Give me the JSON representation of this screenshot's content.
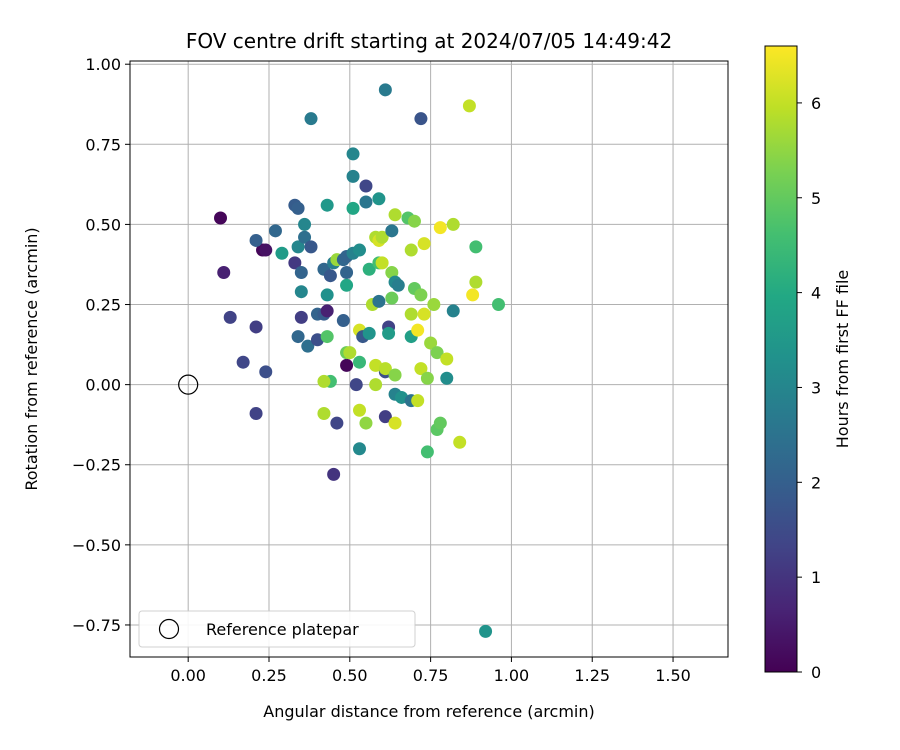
{
  "chart_data": {
    "type": "scatter",
    "title": "FOV centre drift starting at 2024/07/05 14:49:42",
    "xlabel": "Angular distance from reference (arcmin)",
    "ylabel": "Rotation from reference (arcmin)",
    "xlim": [
      -0.18,
      1.67
    ],
    "ylim": [
      -0.85,
      1.01
    ],
    "xticks": [
      0.0,
      0.25,
      0.5,
      0.75,
      1.0,
      1.25,
      1.5
    ],
    "xtick_labels": [
      "0.00",
      "0.25",
      "0.50",
      "0.75",
      "1.00",
      "1.25",
      "1.50"
    ],
    "yticks": [
      -0.75,
      -0.5,
      -0.25,
      0.0,
      0.25,
      0.5,
      0.75,
      1.0
    ],
    "ytick_labels": [
      "−0.75",
      "−0.50",
      "−0.25",
      "0.00",
      "0.25",
      "0.50",
      "0.75",
      "1.00"
    ],
    "grid": true,
    "legend": {
      "placement": "lower-left",
      "entries": [
        {
          "label": "Reference platepar",
          "marker": "open-circle"
        }
      ]
    },
    "reference_point": {
      "x": 0.0,
      "y": 0.0
    },
    "colorbar": {
      "label": "Hours from first FF file",
      "range": [
        0,
        6.6
      ],
      "ticks": [
        0,
        1,
        2,
        3,
        4,
        5,
        6
      ],
      "tick_labels": [
        "0",
        "1",
        "2",
        "3",
        "4",
        "5",
        "6"
      ],
      "colormap": "viridis"
    },
    "points": [
      {
        "x": 0.1,
        "y": 0.52,
        "c": 0.1
      },
      {
        "x": 0.23,
        "y": 0.42,
        "c": 0.1
      },
      {
        "x": 0.24,
        "y": 0.42,
        "c": 0.3
      },
      {
        "x": 0.49,
        "y": 0.06,
        "c": 0.1
      },
      {
        "x": 0.11,
        "y": 0.35,
        "c": 0.6
      },
      {
        "x": 0.13,
        "y": 0.21,
        "c": 1.3
      },
      {
        "x": 0.17,
        "y": 0.07,
        "c": 1.4
      },
      {
        "x": 0.21,
        "y": 0.18,
        "c": 1.2
      },
      {
        "x": 0.21,
        "y": -0.09,
        "c": 1.3
      },
      {
        "x": 0.24,
        "y": 0.04,
        "c": 1.6
      },
      {
        "x": 0.21,
        "y": 0.45,
        "c": 2.0
      },
      {
        "x": 0.27,
        "y": 0.48,
        "c": 2.2
      },
      {
        "x": 0.29,
        "y": 0.41,
        "c": 3.6
      },
      {
        "x": 0.33,
        "y": 0.56,
        "c": 1.9
      },
      {
        "x": 0.34,
        "y": 0.55,
        "c": 2.0
      },
      {
        "x": 0.33,
        "y": 0.38,
        "c": 1.1
      },
      {
        "x": 0.34,
        "y": 0.43,
        "c": 3.0
      },
      {
        "x": 0.35,
        "y": 0.35,
        "c": 2.1
      },
      {
        "x": 0.36,
        "y": 0.46,
        "c": 2.4
      },
      {
        "x": 0.36,
        "y": 0.5,
        "c": 3.0
      },
      {
        "x": 0.38,
        "y": 0.43,
        "c": 1.8
      },
      {
        "x": 0.35,
        "y": 0.29,
        "c": 3.0
      },
      {
        "x": 0.35,
        "y": 0.21,
        "c": 1.2
      },
      {
        "x": 0.34,
        "y": 0.15,
        "c": 2.2
      },
      {
        "x": 0.37,
        "y": 0.12,
        "c": 2.4
      },
      {
        "x": 0.4,
        "y": 0.14,
        "c": 1.6
      },
      {
        "x": 0.4,
        "y": 0.22,
        "c": 2.1
      },
      {
        "x": 0.42,
        "y": 0.22,
        "c": 1.9
      },
      {
        "x": 0.43,
        "y": 0.23,
        "c": 0.6
      },
      {
        "x": 0.42,
        "y": 0.36,
        "c": 2.2
      },
      {
        "x": 0.44,
        "y": 0.34,
        "c": 1.8
      },
      {
        "x": 0.43,
        "y": 0.28,
        "c": 3.3
      },
      {
        "x": 0.43,
        "y": 0.15,
        "c": 4.8
      },
      {
        "x": 0.43,
        "y": 0.56,
        "c": 3.5
      },
      {
        "x": 0.38,
        "y": 0.83,
        "c": 2.7
      },
      {
        "x": 0.45,
        "y": 0.38,
        "c": 2.8
      },
      {
        "x": 0.46,
        "y": 0.39,
        "c": 5.6
      },
      {
        "x": 0.48,
        "y": 0.39,
        "c": 2.2
      },
      {
        "x": 0.49,
        "y": 0.4,
        "c": 2.1
      },
      {
        "x": 0.49,
        "y": 0.35,
        "c": 2.1
      },
      {
        "x": 0.49,
        "y": 0.31,
        "c": 3.9
      },
      {
        "x": 0.48,
        "y": 0.2,
        "c": 2.0
      },
      {
        "x": 0.49,
        "y": 0.1,
        "c": 5.1
      },
      {
        "x": 0.5,
        "y": 0.1,
        "c": 5.8
      },
      {
        "x": 0.52,
        "y": 0.0,
        "c": 1.4
      },
      {
        "x": 0.44,
        "y": 0.01,
        "c": 4.6
      },
      {
        "x": 0.42,
        "y": 0.01,
        "c": 5.8
      },
      {
        "x": 0.42,
        "y": -0.09,
        "c": 5.8
      },
      {
        "x": 0.46,
        "y": -0.12,
        "c": 1.4
      },
      {
        "x": 0.45,
        "y": -0.28,
        "c": 1.0
      },
      {
        "x": 0.53,
        "y": -0.08,
        "c": 6.0
      },
      {
        "x": 0.53,
        "y": -0.2,
        "c": 3.1
      },
      {
        "x": 0.51,
        "y": 0.72,
        "c": 3.0
      },
      {
        "x": 0.51,
        "y": 0.65,
        "c": 2.9
      },
      {
        "x": 0.51,
        "y": 0.55,
        "c": 3.9
      },
      {
        "x": 0.51,
        "y": 0.41,
        "c": 2.9
      },
      {
        "x": 0.53,
        "y": 0.42,
        "c": 3.2
      },
      {
        "x": 0.53,
        "y": 0.17,
        "c": 6.2
      },
      {
        "x": 0.54,
        "y": 0.15,
        "c": 1.8
      },
      {
        "x": 0.55,
        "y": 0.57,
        "c": 2.6
      },
      {
        "x": 0.55,
        "y": 0.62,
        "c": 1.4
      },
      {
        "x": 0.56,
        "y": 0.36,
        "c": 4.2
      },
      {
        "x": 0.56,
        "y": 0.16,
        "c": 3.4
      },
      {
        "x": 0.55,
        "y": -0.12,
        "c": 5.5
      },
      {
        "x": 0.53,
        "y": 0.07,
        "c": 4.4
      },
      {
        "x": 0.57,
        "y": 0.25,
        "c": 5.8
      },
      {
        "x": 0.58,
        "y": 0.46,
        "c": 5.8
      },
      {
        "x": 0.59,
        "y": 0.45,
        "c": 6.2
      },
      {
        "x": 0.59,
        "y": 0.38,
        "c": 4.6
      },
      {
        "x": 0.59,
        "y": 0.26,
        "c": 2.5
      },
      {
        "x": 0.59,
        "y": 0.58,
        "c": 3.4
      },
      {
        "x": 0.58,
        "y": 0.06,
        "c": 6.0
      },
      {
        "x": 0.58,
        "y": 0.0,
        "c": 5.8
      },
      {
        "x": 0.61,
        "y": 0.92,
        "c": 2.7
      },
      {
        "x": 0.6,
        "y": 0.38,
        "c": 6.0
      },
      {
        "x": 0.6,
        "y": 0.46,
        "c": 5.8
      },
      {
        "x": 0.61,
        "y": 0.04,
        "c": 1.6
      },
      {
        "x": 0.61,
        "y": 0.05,
        "c": 5.9
      },
      {
        "x": 0.61,
        "y": -0.1,
        "c": 1.2
      },
      {
        "x": 0.62,
        "y": 0.18,
        "c": 1.3
      },
      {
        "x": 0.62,
        "y": 0.16,
        "c": 3.6
      },
      {
        "x": 0.63,
        "y": 0.27,
        "c": 5.1
      },
      {
        "x": 0.63,
        "y": 0.35,
        "c": 5.4
      },
      {
        "x": 0.63,
        "y": 0.48,
        "c": 2.6
      },
      {
        "x": 0.64,
        "y": 0.53,
        "c": 5.8
      },
      {
        "x": 0.64,
        "y": 0.32,
        "c": 3.1
      },
      {
        "x": 0.64,
        "y": 0.03,
        "c": 5.4
      },
      {
        "x": 0.64,
        "y": -0.03,
        "c": 2.9
      },
      {
        "x": 0.64,
        "y": -0.12,
        "c": 6.2
      },
      {
        "x": 0.65,
        "y": 0.31,
        "c": 2.8
      },
      {
        "x": 0.66,
        "y": -0.04,
        "c": 3.3
      },
      {
        "x": 0.68,
        "y": 0.52,
        "c": 4.8
      },
      {
        "x": 0.69,
        "y": 0.42,
        "c": 5.8
      },
      {
        "x": 0.69,
        "y": 0.22,
        "c": 5.8
      },
      {
        "x": 0.69,
        "y": 0.15,
        "c": 3.7
      },
      {
        "x": 0.7,
        "y": 0.51,
        "c": 5.4
      },
      {
        "x": 0.7,
        "y": 0.3,
        "c": 5.0
      },
      {
        "x": 0.69,
        "y": -0.05,
        "c": 2.5
      },
      {
        "x": 0.71,
        "y": -0.05,
        "c": 6.0
      },
      {
        "x": 0.71,
        "y": 0.17,
        "c": 6.5
      },
      {
        "x": 0.72,
        "y": 0.28,
        "c": 5.3
      },
      {
        "x": 0.72,
        "y": 0.05,
        "c": 6.0
      },
      {
        "x": 0.73,
        "y": 0.44,
        "c": 6.2
      },
      {
        "x": 0.73,
        "y": 0.22,
        "c": 6.2
      },
      {
        "x": 0.72,
        "y": 0.83,
        "c": 1.7
      },
      {
        "x": 0.74,
        "y": 0.02,
        "c": 5.4
      },
      {
        "x": 0.74,
        "y": -0.21,
        "c": 4.6
      },
      {
        "x": 0.75,
        "y": 0.13,
        "c": 5.6
      },
      {
        "x": 0.76,
        "y": 0.25,
        "c": 5.6
      },
      {
        "x": 0.77,
        "y": 0.1,
        "c": 5.3
      },
      {
        "x": 0.77,
        "y": -0.14,
        "c": 4.9
      },
      {
        "x": 0.78,
        "y": -0.12,
        "c": 5.0
      },
      {
        "x": 0.78,
        "y": 0.49,
        "c": 6.5
      },
      {
        "x": 0.8,
        "y": 0.02,
        "c": 3.2
      },
      {
        "x": 0.8,
        "y": 0.08,
        "c": 6.0
      },
      {
        "x": 0.82,
        "y": 0.5,
        "c": 5.8
      },
      {
        "x": 0.82,
        "y": 0.23,
        "c": 2.9
      },
      {
        "x": 0.84,
        "y": -0.18,
        "c": 6.0
      },
      {
        "x": 0.87,
        "y": 0.87,
        "c": 6.0
      },
      {
        "x": 0.88,
        "y": 0.28,
        "c": 6.5
      },
      {
        "x": 0.89,
        "y": 0.32,
        "c": 5.8
      },
      {
        "x": 0.89,
        "y": 0.43,
        "c": 4.6
      },
      {
        "x": 0.92,
        "y": -0.77,
        "c": 3.4
      },
      {
        "x": 0.96,
        "y": 0.25,
        "c": 4.6
      }
    ]
  }
}
